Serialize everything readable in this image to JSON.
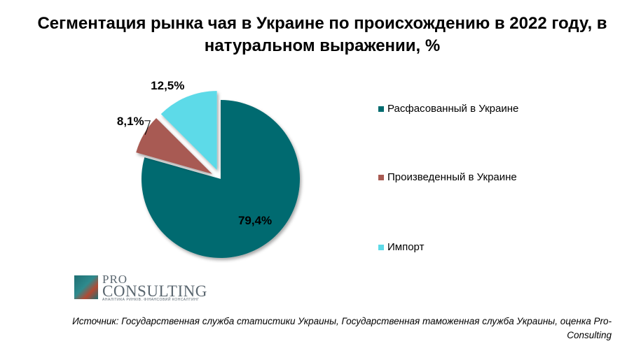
{
  "chart_data": {
    "type": "pie",
    "title": "Сегментация рынка чая в Украине по происхождению в 2022 году, в натуральном выражении, %",
    "slices": [
      {
        "label": "Расфасованный в Украине",
        "value": 79.4,
        "display": "79,4%",
        "color": "#006b6f"
      },
      {
        "label": "Произведенный  в Украине",
        "value": 8.1,
        "display": "8,1%",
        "color": "#a85a52"
      },
      {
        "label": "Импорт",
        "value": 12.5,
        "display": "12,5%",
        "color": "#5ddae8"
      }
    ],
    "legend_position": "right"
  },
  "logo": {
    "pro": "PRO",
    "consulting": "CONSULTING",
    "tagline": "АНАЛІТИКА РИНКІВ. ФІНАНСОВИЙ КОНСАЛТИНГ"
  },
  "source": "Источник: Государственная служба статистики Украины, Государственная таможенная  служба Украины, оценка Pro-Consulting"
}
